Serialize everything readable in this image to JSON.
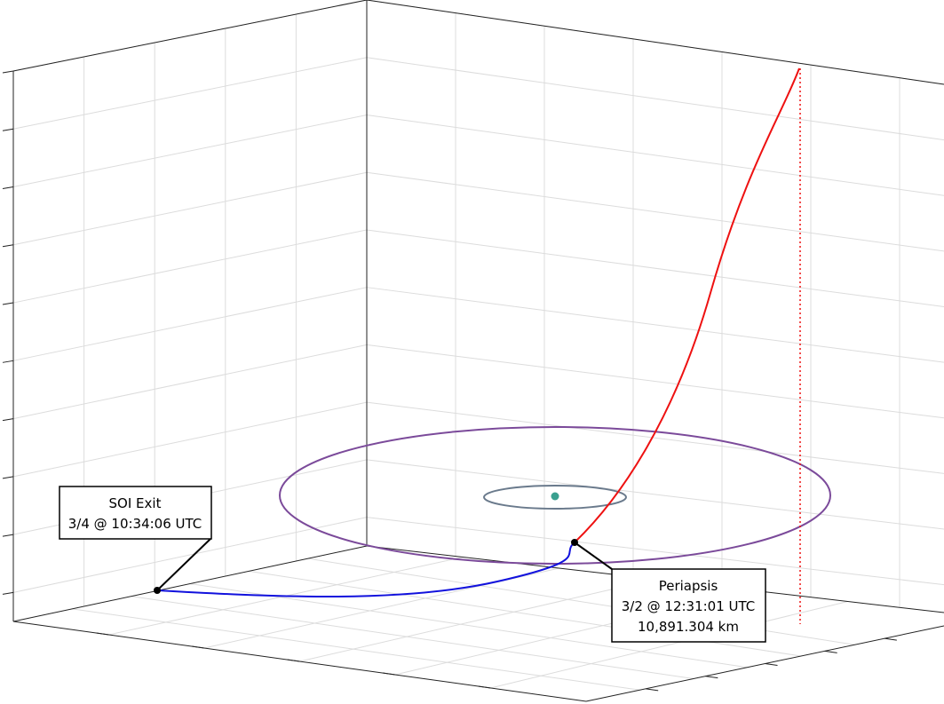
{
  "annotations": [
    {
      "title": "SOI Exit",
      "lines": [
        "3/4 @ 10:34:06 UTC"
      ]
    },
    {
      "title": "Periapsis",
      "lines": [
        "3/2 @ 12:31:01 UTC",
        "10,891.304 km"
      ]
    }
  ]
}
